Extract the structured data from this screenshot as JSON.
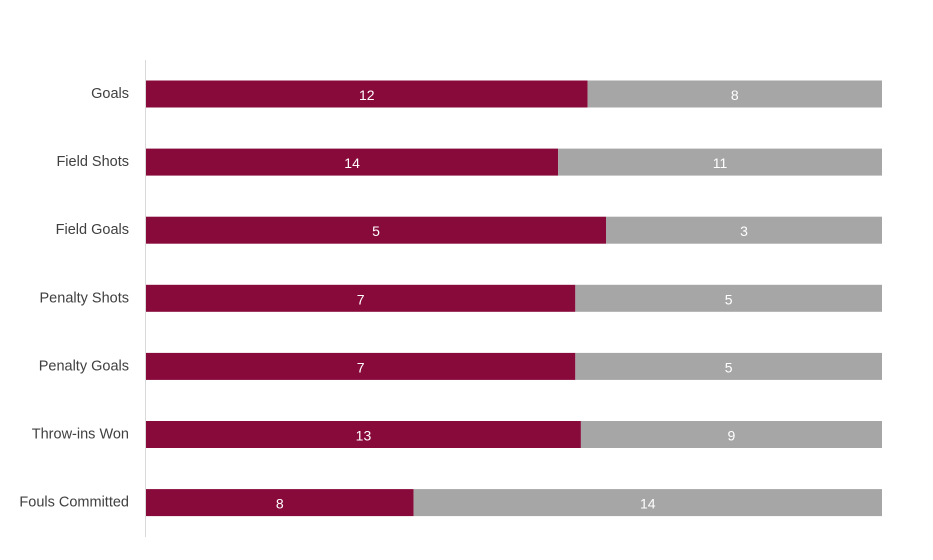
{
  "chart_data": {
    "type": "bar",
    "orientation": "horizontal",
    "stacked": true,
    "normalized": true,
    "title": "",
    "xlabel": "",
    "ylabel": "",
    "grid": false,
    "legend": "none",
    "categories": [
      "Goals",
      "Field Shots",
      "Field Goals",
      "Penalty Shots",
      "Penalty Goals",
      "Throw-ins Won",
      "Fouls Committed"
    ],
    "series": [
      {
        "values": [
          12,
          14,
          5,
          7,
          7,
          13,
          8
        ],
        "color": "#870A3A"
      },
      {
        "values": [
          8,
          11,
          3,
          5,
          5,
          9,
          14
        ],
        "color": "#A6A6A6"
      }
    ]
  }
}
